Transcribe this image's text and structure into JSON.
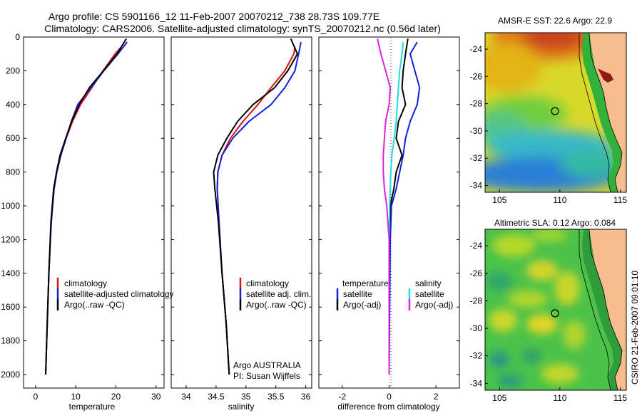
{
  "header": {
    "line1": "Argo profile: CS 5901166_12 11-Feb-2007 20070212_738 28.73S 109.77E",
    "line2": "Climatology: CARS2006. Satellite-adjusted climatology: synTS_20070212.nc (0.56d later)"
  },
  "colors": {
    "climatology": "#dd1111",
    "satellite": "#1122dd",
    "argo": "#000000",
    "salinity_satellite": "#22dddd",
    "salinity_argo": "#dd22dd",
    "land": "#f8bd8e"
  },
  "credit": "CSIRO 21-Feb-2007 09:01:10",
  "chart_data": [
    {
      "type": "line",
      "xlabel": "temperature",
      "ylabel": "",
      "xlim": [
        -3,
        32
      ],
      "ylim": [
        2080,
        0
      ],
      "y_reversed": true,
      "xticks": [
        "0",
        "10",
        "20",
        "30"
      ],
      "yticks": [
        "0",
        "200",
        "400",
        "600",
        "800",
        "1000",
        "1200",
        "1400",
        "1600",
        "1800",
        "2000"
      ],
      "legend": [
        "climatology",
        "satellite-adjusted climatology",
        "Argo(..raw -QC)"
      ],
      "series": [
        {
          "name": "climatology",
          "color": "red",
          "x": [
            21.3,
            19.8,
            16.8,
            14.0,
            11.2,
            9.2,
            7.6,
            6.3,
            5.3,
            4.6,
            3.9,
            3.3,
            2.9,
            2.5
          ],
          "y": [
            60,
            100,
            200,
            300,
            400,
            500,
            600,
            700,
            800,
            900,
            1100,
            1400,
            1700,
            2000
          ]
        },
        {
          "name": "satellite-adjusted climatology",
          "color": "blue",
          "x": [
            22.8,
            20.5,
            17.0,
            13.8,
            10.5,
            8.9,
            7.6,
            6.3,
            5.3,
            4.6,
            3.9,
            3.3,
            2.9,
            2.5
          ],
          "y": [
            30,
            100,
            200,
            300,
            400,
            500,
            600,
            700,
            800,
            900,
            1100,
            1400,
            1700,
            2000
          ]
        },
        {
          "name": "Argo(..raw -QC)",
          "color": "black",
          "x": [
            22.6,
            20.3,
            16.9,
            13.4,
            10.9,
            9.0,
            7.5,
            6.1,
            5.2,
            4.5,
            3.8,
            3.3,
            2.9,
            2.5
          ],
          "y": [
            10,
            100,
            200,
            300,
            400,
            500,
            600,
            700,
            800,
            900,
            1100,
            1400,
            1700,
            2000
          ]
        }
      ]
    },
    {
      "type": "line",
      "xlabel": "salinity",
      "ylabel": "",
      "xlim": [
        33.75,
        36.1
      ],
      "ylim": [
        2080,
        0
      ],
      "y_reversed": true,
      "xticks": [
        "34",
        "34.5",
        "35",
        "35.5",
        "36"
      ],
      "legend": [
        "climatology",
        "satellite adj. clim.",
        "Argo(..raw -QC)"
      ],
      "annotation": [
        "Argo AUSTRALIA",
        "PI: Susan Wijffels"
      ],
      "series": [
        {
          "name": "climatology",
          "color": "red",
          "x": [
            35.82,
            35.8,
            35.65,
            35.42,
            35.2,
            34.95,
            34.74,
            34.6,
            34.53,
            34.52,
            34.55,
            34.6,
            34.67,
            34.72
          ],
          "y": [
            60,
            100,
            200,
            300,
            400,
            500,
            600,
            700,
            800,
            900,
            1100,
            1400,
            1700,
            2000
          ]
        },
        {
          "name": "satellite adj. clim.",
          "color": "blue",
          "x": [
            35.92,
            35.88,
            35.82,
            35.65,
            35.42,
            35.05,
            34.78,
            34.6,
            34.53,
            34.52,
            34.55,
            34.6,
            34.67,
            34.72
          ],
          "y": [
            30,
            100,
            200,
            300,
            400,
            500,
            600,
            700,
            800,
            900,
            1100,
            1400,
            1700,
            2000
          ]
        },
        {
          "name": "Argo(..raw -QC)",
          "color": "black",
          "x": [
            35.75,
            35.86,
            35.7,
            35.48,
            35.12,
            34.86,
            34.68,
            34.53,
            34.46,
            34.48,
            34.54,
            34.6,
            34.67,
            34.72
          ],
          "y": [
            10,
            100,
            200,
            300,
            400,
            500,
            600,
            700,
            800,
            900,
            1100,
            1400,
            1700,
            2000
          ]
        }
      ]
    },
    {
      "type": "line",
      "xlabel": "difference from climatology",
      "ylabel": "",
      "xlim": [
        -3,
        3
      ],
      "ylim": [
        2080,
        0
      ],
      "y_reversed": true,
      "xticks": [
        "-2",
        "0",
        "2"
      ],
      "legend_groups": [
        {
          "heading": "temperature",
          "items": [
            "satellite",
            "Argo(-adj)"
          ]
        },
        {
          "heading": "salinity",
          "items": [
            "satellite",
            "Argo(-adj)"
          ]
        }
      ],
      "series": [
        {
          "name": "temperature satellite",
          "color": "blue",
          "x": [
            1.2,
            0.9,
            1.1,
            1.3,
            1.2,
            0.9,
            0.7,
            0.6,
            0.45,
            0.3,
            0.1,
            0.05,
            0.02,
            0.0
          ],
          "y": [
            30,
            100,
            200,
            300,
            400,
            500,
            600,
            700,
            800,
            900,
            1000,
            1200,
            1600,
            2000
          ]
        },
        {
          "name": "temperature Argo(-adj)",
          "color": "black",
          "x": [
            0.8,
            0.7,
            0.6,
            0.55,
            0.7,
            0.4,
            0.3,
            0.55,
            0.3,
            0.2,
            0.05,
            0.0,
            0.0,
            0.0
          ],
          "y": [
            10,
            100,
            200,
            300,
            400,
            500,
            600,
            700,
            800,
            900,
            1000,
            1200,
            1600,
            2000
          ]
        },
        {
          "name": "salinity satellite",
          "color": "cyan",
          "x": [
            0.6,
            0.55,
            0.45,
            0.4,
            0.35,
            0.3,
            0.22,
            0.12,
            0.07,
            0.05,
            0.02,
            0.0,
            0.0,
            0.0
          ],
          "y": [
            30,
            100,
            200,
            300,
            400,
            500,
            600,
            700,
            800,
            900,
            1000,
            1200,
            1600,
            2000
          ]
        },
        {
          "name": "salinity Argo(-adj)",
          "color": "magenta",
          "x": [
            -0.5,
            -0.35,
            -0.15,
            0.05,
            0.0,
            -0.15,
            -0.2,
            -0.25,
            -0.25,
            -0.2,
            -0.1,
            0.0,
            0.0,
            0.0
          ],
          "y": [
            10,
            100,
            200,
            300,
            400,
            500,
            600,
            700,
            800,
            900,
            1000,
            1200,
            1600,
            2000
          ]
        }
      ]
    },
    {
      "type": "heatmap",
      "title": "AMSR-E SST: 22.6 Argo: 22.9",
      "xticks": [
        "105",
        "110",
        "115"
      ],
      "yticks": [
        "-24",
        "-26",
        "-28",
        "-30",
        "-32",
        "-34"
      ],
      "xlim": [
        103.8,
        115.5
      ],
      "ylim": [
        -34.5,
        -22.8
      ],
      "marker": {
        "lon": 109.77,
        "lat": -28.73
      },
      "colormap": "jet"
    },
    {
      "type": "heatmap",
      "title": "Altimetric SLA: 0.12 Argo: 0.084",
      "xticks": [
        "105",
        "110",
        "115"
      ],
      "yticks": [
        "-24",
        "-26",
        "-28",
        "-30",
        "-32",
        "-34"
      ],
      "xlim": [
        103.8,
        115.5
      ],
      "ylim": [
        -34.5,
        -22.8
      ],
      "marker": {
        "lon": 109.77,
        "lat": -28.73
      },
      "colormap": "jet"
    }
  ]
}
